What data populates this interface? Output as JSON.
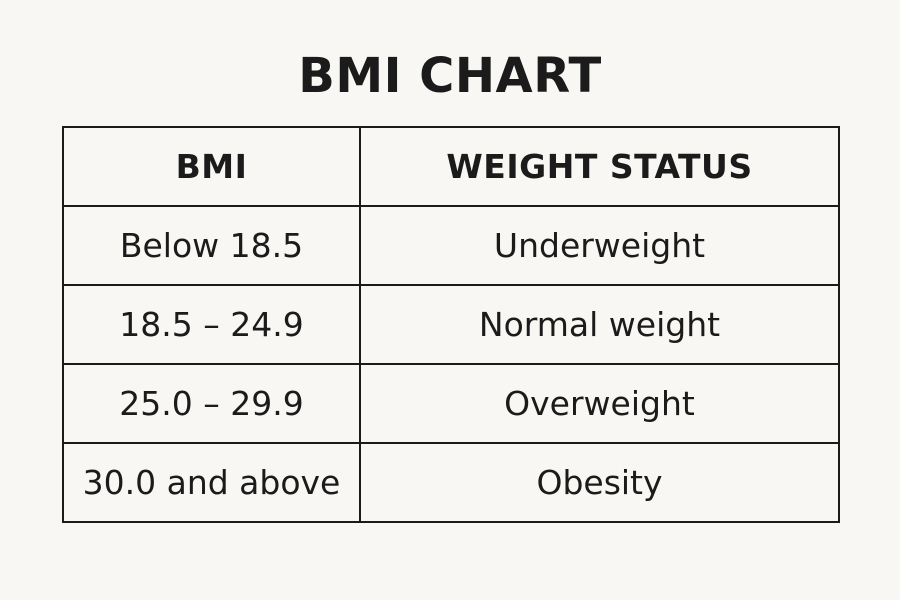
{
  "title": "BMI CHART",
  "table": {
    "headers": [
      "BMI",
      "WEIGHT STATUS"
    ],
    "rows": [
      [
        "Below 18.5",
        "Underweight"
      ],
      [
        "18.5 – 24.9",
        "Normal weight"
      ],
      [
        "25.0 – 29.9",
        "Overweight"
      ],
      [
        "30.0 and above",
        "Obesity"
      ]
    ]
  }
}
